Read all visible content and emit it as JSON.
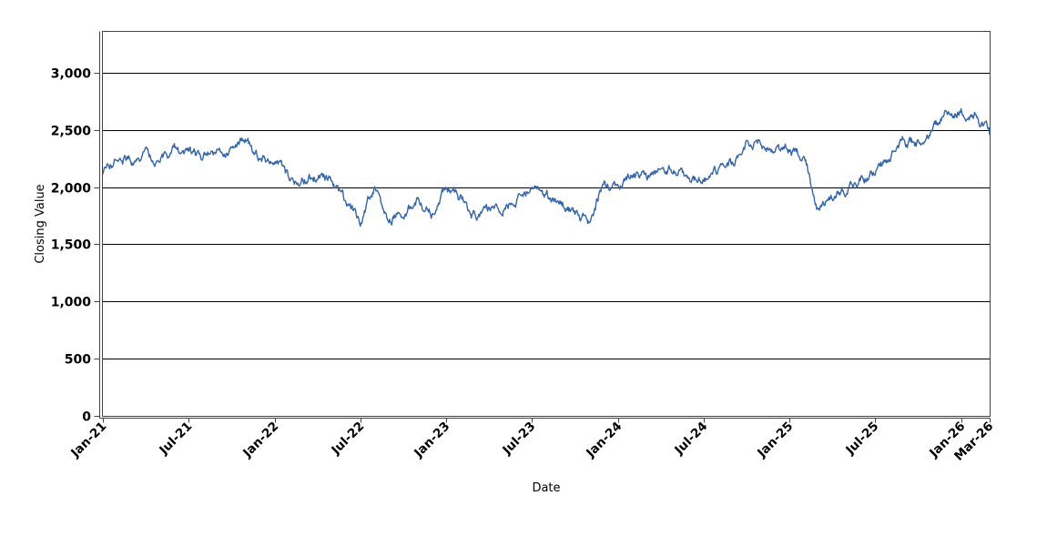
{
  "window": {
    "background": "#ffffff"
  },
  "colors": {
    "gridline": "#000000",
    "plot_frame": "#444444",
    "axis_line": "#444444",
    "tick_text": "#000000",
    "series_line": "#3465a8",
    "plot_background": "#ffffff"
  },
  "chart_data": {
    "type": "line",
    "title": "",
    "xlabel": "Date",
    "ylabel": "Closing Value",
    "legend": "none",
    "grid": "horizontal-only",
    "ylim": [
      0,
      3356
    ],
    "xlim_months": [
      0,
      62
    ],
    "y_ticks": [
      0,
      500,
      1000,
      1500,
      2000,
      2500,
      3000
    ],
    "y_tick_labels": [
      "0",
      "500",
      "1,000",
      "1,500",
      "2,000",
      "2,500",
      "3,000"
    ],
    "x_tick_labels": [
      "Jan-21",
      "Jul-21",
      "Jan-22",
      "Jul-22",
      "Jan-23",
      "Jul-23",
      "Jan-24",
      "Jul-24",
      "Jan-25",
      "Jul-25",
      "Jan-26",
      "Mar-26"
    ],
    "x_tick_months": [
      0,
      6,
      12,
      18,
      24,
      30,
      36,
      42,
      48,
      54,
      60,
      62
    ],
    "series": [
      {
        "name": "Closing Value",
        "color": "#3465a8",
        "months": [
          "Jan-21",
          "Feb-21",
          "Mar-21",
          "Apr-21",
          "May-21",
          "Jun-21",
          "Jul-21",
          "Aug-21",
          "Sep-21",
          "Oct-21",
          "Nov-21",
          "Dec-21",
          "Jan-22",
          "Feb-22",
          "Mar-22",
          "Apr-22",
          "May-22",
          "Jun-22",
          "Jul-22",
          "Aug-22",
          "Sep-22",
          "Oct-22",
          "Nov-22",
          "Dec-22",
          "Jan-23",
          "Feb-23",
          "Mar-23",
          "Apr-23",
          "May-23",
          "Jun-23",
          "Jul-23",
          "Aug-23",
          "Sep-23",
          "Oct-23",
          "Nov-23",
          "Dec-23",
          "Jan-24",
          "Feb-24",
          "Mar-24",
          "Apr-24",
          "May-24",
          "Jun-24",
          "Jul-24",
          "Aug-24",
          "Sep-24",
          "Oct-24",
          "Nov-24",
          "Dec-24",
          "Jan-25",
          "Feb-25",
          "Mar-25",
          "Apr-25",
          "May-25",
          "Jun-25",
          "Jul-25",
          "Aug-25",
          "Sep-25",
          "Oct-25",
          "Nov-25",
          "Dec-25",
          "Jan-26",
          "Feb-26",
          "Mar-26"
        ],
        "values": [
          2110,
          2260,
          2230,
          2290,
          2250,
          2330,
          2300,
          2250,
          2300,
          2320,
          2430,
          2210,
          2250,
          2060,
          2080,
          2090,
          2030,
          1850,
          1690,
          2010,
          1700,
          1780,
          1860,
          1760,
          1980,
          1900,
          1760,
          1820,
          1840,
          1870,
          1990,
          1900,
          1850,
          1780,
          1670,
          2040,
          2000,
          2100,
          2060,
          2120,
          2160,
          2060,
          2060,
          2140,
          2230,
          2380,
          2420,
          2300,
          2310,
          2290,
          1810,
          1890,
          2000,
          2070,
          2140,
          2260,
          2400,
          2380,
          2500,
          2640,
          2690,
          2640,
          2460
        ]
      }
    ]
  }
}
